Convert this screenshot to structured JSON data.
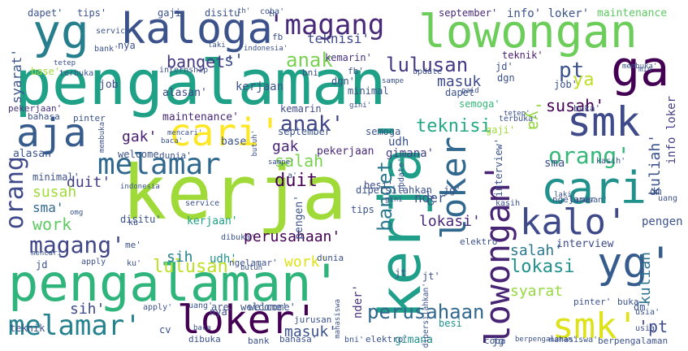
{
  "wordcloud": {
    "palette": [
      "#440154",
      "#46327e",
      "#365c8d",
      "#277f8e",
      "#1fa187",
      "#4ac16d",
      "#a0da39",
      "#fde725"
    ],
    "words": [
      {
        "text": "kerja",
        "color": "#a0da39"
      },
      {
        "text": "pengalaman",
        "color": "#1fa187"
      },
      {
        "text": "pengalaman'",
        "color": "#2fb47c"
      },
      {
        "text": "yg",
        "color": "#277f8e"
      },
      {
        "text": "kaloga",
        "color": "#3b528b"
      },
      {
        "text": "lowongan",
        "color": "#6ccd5a"
      },
      {
        "text": "'magang",
        "color": "#482878"
      },
      {
        "text": "ga",
        "color": "#440154"
      },
      {
        "text": "aja",
        "color": "#365c8d"
      },
      {
        "text": "cari'",
        "color": "#fde725"
      },
      {
        "text": "smk",
        "color": "#3e4a89"
      },
      {
        "text": "melamar",
        "color": "#31688e"
      },
      {
        "text": "cari",
        "color": "#21918c"
      },
      {
        "text": "kalo'",
        "color": "#3e4a89"
      },
      {
        "text": "yg'",
        "color": "#365c8d"
      },
      {
        "text": "loker'",
        "color": "#440154"
      },
      {
        "text": "melamar'",
        "color": "#26828e"
      },
      {
        "text": "smk'",
        "color": "#dde318"
      },
      {
        "text": "kerja'",
        "color": "#1f9e89"
      },
      {
        "text": "lowongan'",
        "color": "#482475"
      },
      {
        "text": "loker",
        "color": "#31688e"
      },
      {
        "text": "banget'",
        "color": "#443983"
      },
      {
        "text": "anak",
        "color": "#7ad151"
      },
      {
        "text": "lulusan",
        "color": "#443983"
      },
      {
        "text": "orang'",
        "color": "#35b779"
      },
      {
        "text": "pt",
        "color": "#3b528b"
      },
      {
        "text": "ya",
        "color": "#bddf26"
      },
      {
        "text": "anak'",
        "color": "#404688"
      },
      {
        "text": "orang",
        "color": "#3e4a89"
      },
      {
        "text": "magang'",
        "color": "#404688"
      },
      {
        "text": "banget",
        "color": "#2a788e"
      },
      {
        "text": "perusahaan",
        "color": "#31688e"
      },
      {
        "text": "lulusan'",
        "color": "#bddf26"
      },
      {
        "text": "teknisi",
        "color": "#22a884"
      },
      {
        "text": "'ya",
        "color": "#95d840"
      },
      {
        "text": "kuliah'",
        "color": "#3b528b"
      },
      {
        "text": "kuliah",
        "color": "#2c728e"
      },
      {
        "text": "susah'",
        "color": "#440154"
      },
      {
        "text": "gak'",
        "color": "#481f70"
      },
      {
        "text": "duit'",
        "color": "#433e85"
      },
      {
        "text": "duit",
        "color": "#440154"
      },
      {
        "text": "salah",
        "color": "#7ad151"
      },
      {
        "text": "gak",
        "color": "#482475"
      },
      {
        "text": "work",
        "color": "#5ec962"
      },
      {
        "text": "work'",
        "color": "#dde318"
      },
      {
        "text": "sih",
        "color": "#26828e"
      },
      {
        "text": "sih'",
        "color": "#3e4a89"
      },
      {
        "text": "lokasi",
        "color": "#21918c"
      },
      {
        "text": "lokasi'",
        "color": "#482878"
      },
      {
        "text": "salah'",
        "color": "#2a788e"
      },
      {
        "text": "masuk",
        "color": "#3e4a89"
      },
      {
        "text": "masuk'",
        "color": "#3b528b"
      },
      {
        "text": "syarat",
        "color": "#95d840"
      },
      {
        "text": "syarat'",
        "color": "#3b528b"
      },
      {
        "text": "perusahaan'",
        "color": "#440154"
      },
      {
        "text": "susah",
        "color": "#a0da39"
      },
      {
        "text": "teknisi'",
        "color": "#3e4a89"
      },
      {
        "text": "info loker",
        "color": "#433e85"
      },
      {
        "text": "info' loker'",
        "color": "#3b528b"
      },
      {
        "text": "maintenance",
        "color": "#5ec962"
      },
      {
        "text": "maintenance'",
        "color": "#482878"
      },
      {
        "text": "interview",
        "color": "#3e4a89"
      },
      {
        "text": "interview'",
        "color": "#3b528b"
      },
      {
        "text": "nder",
        "color": "#3b528b"
      },
      {
        "text": "nder'",
        "color": "#46327e"
      },
      {
        "text": "udh",
        "color": "#3b528b"
      },
      {
        "text": "udh'",
        "color": "#21918c"
      },
      {
        "text": "kerjaan",
        "color": "#3b528b"
      },
      {
        "text": "kerjaan'",
        "color": "#1f9e89"
      },
      {
        "text": "pengen",
        "color": "#3b528b"
      },
      {
        "text": "pengen'",
        "color": "#3b528b"
      },
      {
        "text": "gimana",
        "color": "#21918c"
      },
      {
        "text": "gimana'",
        "color": "#433e85"
      },
      {
        "text": "pekerjaan",
        "color": "#482878"
      },
      {
        "text": "pekerjaan'",
        "color": "#46327e"
      },
      {
        "text": "'pt",
        "color": "#3e4a89"
      },
      {
        "text": "sma",
        "color": "#3b528b"
      },
      {
        "text": "sma'",
        "color": "#31688e"
      },
      {
        "text": "alasan",
        "color": "#3b528b"
      },
      {
        "text": "alasan'",
        "color": "#3e4a89"
      },
      {
        "text": "teknik",
        "color": "#3b528b"
      },
      {
        "text": "teknik'",
        "color": "#481f70"
      },
      {
        "text": "semoga",
        "color": "#3b528b"
      },
      {
        "text": "semoga'",
        "color": "#35b779"
      },
      {
        "text": "kemarin",
        "color": "#3e4a89"
      },
      {
        "text": "kemarin'",
        "color": "#46327e"
      },
      {
        "text": "september",
        "color": "#3b528b"
      },
      {
        "text": "september'",
        "color": "#482878"
      },
      {
        "text": "besi",
        "color": "#21918c"
      },
      {
        "text": "besi'",
        "color": "#3e4a89"
      },
      {
        "text": "dapet",
        "color": "#3b528b"
      },
      {
        "text": "dapet'",
        "color": "#3b528b"
      },
      {
        "text": "tips",
        "color": "#3b528b"
      },
      {
        "text": "tips'",
        "color": "#3b528b"
      },
      {
        "text": "gaji",
        "color": "#3b528b"
      },
      {
        "text": "gaji'",
        "color": "#a0da39"
      },
      {
        "text": "disitu",
        "color": "#3b528b"
      },
      {
        "text": "disitu'",
        "color": "#3b528b"
      },
      {
        "text": "base",
        "color": "#3b528b"
      },
      {
        "text": "base'",
        "color": "#a0da39"
      },
      {
        "text": "job",
        "color": "#3e4a89"
      },
      {
        "text": "job'",
        "color": "#3b528b"
      },
      {
        "text": "nya",
        "color": "#3b528b"
      },
      {
        "text": "nya'",
        "color": "#3e4a89"
      },
      {
        "text": "jd",
        "color": "#3b528b"
      },
      {
        "text": "jd'",
        "color": "#3b528b"
      },
      {
        "text": "dgn",
        "color": "#3b528b"
      },
      {
        "text": "dgn'",
        "color": "#3b528b"
      },
      {
        "text": "minimal",
        "color": "#3b528b"
      },
      {
        "text": "minimal'",
        "color": "#3b528b"
      },
      {
        "text": "welcome",
        "color": "#3b528b"
      },
      {
        "text": "welcome'",
        "color": "#3b528b"
      },
      {
        "text": "are' welcome'",
        "color": "#3b528b"
      },
      {
        "text": "elektro",
        "color": "#3b528b"
      },
      {
        "text": "elektro'",
        "color": "#3b528b"
      },
      {
        "text": "dunia",
        "color": "#3b528b"
      },
      {
        "text": "dunia'",
        "color": "#3b528b"
      },
      {
        "text": "bahasa",
        "color": "#3b528b"
      },
      {
        "text": "bahasa'",
        "color": "#3b528b"
      },
      {
        "text": "pinter",
        "color": "#3b528b"
      },
      {
        "text": "pinter'",
        "color": "#3b528b"
      },
      {
        "text": "buka",
        "color": "#3b528b"
      },
      {
        "text": "buka'",
        "color": "#3b528b"
      },
      {
        "text": "usia'",
        "color": "#3b528b"
      },
      {
        "text": "usia",
        "color": "#3b528b"
      },
      {
        "text": "dm",
        "color": "#3b528b"
      },
      {
        "text": "dm'",
        "color": "#3b528b"
      },
      {
        "text": "uang",
        "color": "#3b528b"
      },
      {
        "text": "uang'",
        "color": "#3b528b"
      },
      {
        "text": "coba",
        "color": "#3b528b"
      },
      {
        "text": "coba'",
        "color": "#3b528b"
      },
      {
        "text": "bank",
        "color": "#3b528b"
      },
      {
        "text": "bank'",
        "color": "#3b528b"
      },
      {
        "text": "bni",
        "color": "#3b528b"
      },
      {
        "text": "bni'",
        "color": "#3b528b"
      },
      {
        "text": "jurusan",
        "color": "#3b528b"
      },
      {
        "text": "jurusan'",
        "color": "#3b528b"
      },
      {
        "text": "cv",
        "color": "#3b528b"
      },
      {
        "text": "cv'",
        "color": "#3b528b"
      },
      {
        "text": "dibuka",
        "color": "#3b528b"
      },
      {
        "text": "dibuka'",
        "color": "#3b528b"
      },
      {
        "text": "service",
        "color": "#3b528b"
      },
      {
        "text": "service'",
        "color": "#3b528b"
      },
      {
        "text": "jg",
        "color": "#3b528b"
      },
      {
        "text": "jg'",
        "color": "#3b528b"
      },
      {
        "text": "jt",
        "color": "#3b528b"
      },
      {
        "text": "jt'",
        "color": "#3b528b"
      },
      {
        "text": "ku",
        "color": "#3b528b"
      },
      {
        "text": "ku'",
        "color": "#3b528b"
      },
      {
        "text": "me'",
        "color": "#3b528b"
      },
      {
        "text": "apply",
        "color": "#3b528b"
      },
      {
        "text": "apply'",
        "color": "#3b528b"
      },
      {
        "text": "internship",
        "color": "#3b528b"
      },
      {
        "text": "terbuka",
        "color": "#3b528b"
      },
      {
        "text": "terbuka'",
        "color": "#3b528b"
      },
      {
        "text": "mahasiswa",
        "color": "#3b528b"
      },
      {
        "text": "mahasiswa'",
        "color": "#3b528b"
      },
      {
        "text": "berpengalaman",
        "color": "#3b528b"
      },
      {
        "text": "berpengalaman'",
        "color": "#3b528b"
      },
      {
        "text": "kasih",
        "color": "#3b528b"
      },
      {
        "text": "kasih'",
        "color": "#3b528b"
      },
      {
        "text": "ngelamar",
        "color": "#3b528b"
      },
      {
        "text": "ngelamar'",
        "color": "#3b528b"
      },
      {
        "text": "dipersilahkan",
        "color": "#3b528b"
      },
      {
        "text": "dipersilahkan'",
        "color": "#3b528b"
      },
      {
        "text": "update",
        "color": "#3b528b"
      },
      {
        "text": "update'",
        "color": "#3b528b"
      },
      {
        "text": "paid",
        "color": "#3b528b"
      },
      {
        "text": "indonesia",
        "color": "#3b528b"
      },
      {
        "text": "indonesia'",
        "color": "#3b528b"
      },
      {
        "text": "mencari",
        "color": "#3b528b"
      },
      {
        "text": "mencari'",
        "color": "#3b528b"
      },
      {
        "text": "membuka",
        "color": "#3b528b"
      },
      {
        "text": "membuka'",
        "color": "#3b528b"
      },
      {
        "text": "butuh",
        "color": "#3b528b"
      },
      {
        "text": "butuh'",
        "color": "#3b528b"
      },
      {
        "text": "laki",
        "color": "#3b528b"
      },
      {
        "text": "laki'",
        "color": "#3b528b"
      },
      {
        "text": "tetep",
        "color": "#3b528b"
      },
      {
        "text": "tetep'",
        "color": "#3b528b"
      },
      {
        "text": "fb",
        "color": "#3b528b"
      },
      {
        "text": "fb'",
        "color": "#3b528b"
      },
      {
        "text": "sampe",
        "color": "#3b528b"
      },
      {
        "text": "sampe'",
        "color": "#3b528b"
      },
      {
        "text": "th",
        "color": "#3b528b"
      },
      {
        "text": "th'",
        "color": "#3b528b"
      },
      {
        "text": "gini",
        "color": "#3b528b"
      },
      {
        "text": "gini'",
        "color": "#3b528b"
      },
      {
        "text": "omg",
        "color": "#3b528b"
      },
      {
        "text": "baca",
        "color": "#3b528b"
      },
      {
        "text": "baca'",
        "color": "#3b528b"
      },
      {
        "text": "min",
        "color": "#3b528b"
      },
      {
        "text": "s'",
        "color": "#3b528b"
      },
      {
        "text": "a'",
        "color": "#3b528b"
      }
    ]
  }
}
